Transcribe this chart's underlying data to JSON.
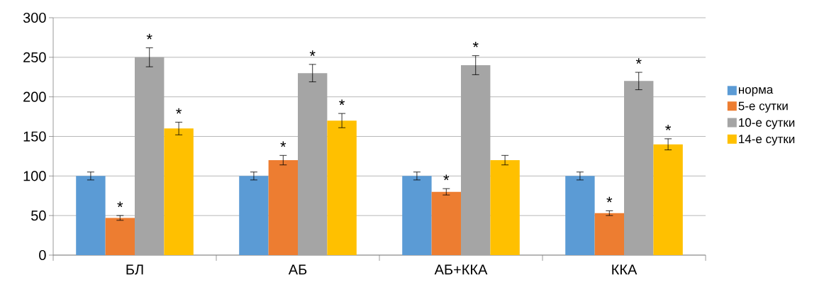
{
  "chart_data": {
    "type": "bar",
    "categories": [
      "БЛ",
      "АБ",
      "АБ+ККА",
      "ККА"
    ],
    "series": [
      {
        "name": "норма",
        "color": "#5b9bd5",
        "values": [
          100,
          100,
          100,
          100
        ],
        "errors": [
          5,
          5,
          5,
          5
        ]
      },
      {
        "name": "5-е сутки",
        "color": "#ed7d31",
        "values": [
          47,
          120,
          80,
          53
        ],
        "errors": [
          3,
          6,
          4,
          3
        ]
      },
      {
        "name": "10-е сутки",
        "color": "#a5a5a5",
        "values": [
          250,
          230,
          240,
          220
        ],
        "errors": [
          12,
          11,
          12,
          11
        ]
      },
      {
        "name": "14-е сутки",
        "color": "#ffc000",
        "values": [
          160,
          170,
          120,
          140
        ],
        "errors": [
          8,
          9,
          6,
          7
        ]
      }
    ],
    "ylim": [
      0,
      300
    ],
    "yticks": [
      0,
      50,
      100,
      150,
      200,
      250,
      300
    ],
    "grid": "y",
    "legend": "right",
    "annotations": [
      {
        "text": "*",
        "x": "БЛ",
        "y": 47
      },
      {
        "text": "*",
        "x": "БЛ",
        "y": 250
      },
      {
        "text": "*",
        "x": "БЛ",
        "y": 160
      },
      {
        "text": "*",
        "x": "АБ",
        "y": 120
      },
      {
        "text": "*",
        "x": "АБ",
        "y": 230
      },
      {
        "text": "*",
        "x": "АБ",
        "y": 170
      },
      {
        "text": "*",
        "x": "АБ+ККА",
        "y": 80
      },
      {
        "text": "*",
        "x": "АБ+ККА",
        "y": 240
      },
      {
        "text": "*",
        "x": "ККА",
        "y": 53
      },
      {
        "text": "*",
        "x": "ККА",
        "y": 220
      },
      {
        "text": "*",
        "x": "ККА",
        "y": 140
      }
    ]
  }
}
